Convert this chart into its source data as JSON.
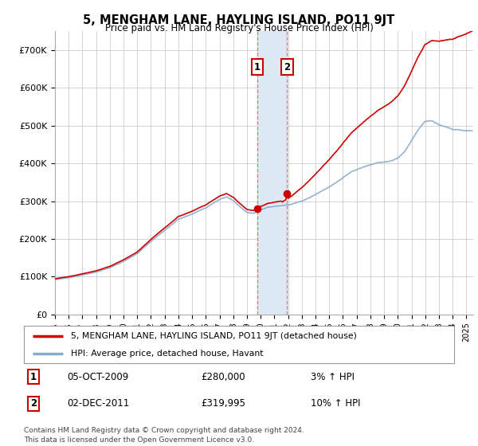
{
  "title": "5, MENGHAM LANE, HAYLING ISLAND, PO11 9JT",
  "subtitle": "Price paid vs. HM Land Registry's House Price Index (HPI)",
  "ylabel_ticks": [
    "£0",
    "£100K",
    "£200K",
    "£300K",
    "£400K",
    "£500K",
    "£600K",
    "£700K"
  ],
  "ytick_values": [
    0,
    100000,
    200000,
    300000,
    400000,
    500000,
    600000,
    700000
  ],
  "ylim": [
    0,
    750000
  ],
  "line1_color": "#cc0000",
  "line2_color": "#88aacc",
  "shading_color": "#dce9f5",
  "marker1_color": "#cc0000",
  "transaction1_date": "05-OCT-2009",
  "transaction1_price": "£280,000",
  "transaction1_hpi": "3% ↑ HPI",
  "transaction2_date": "02-DEC-2011",
  "transaction2_price": "£319,995",
  "transaction2_hpi": "10% ↑ HPI",
  "legend_line1": "5, MENGHAM LANE, HAYLING ISLAND, PO11 9JT (detached house)",
  "legend_line2": "HPI: Average price, detached house, Havant",
  "footer": "Contains HM Land Registry data © Crown copyright and database right 2024.\nThis data is licensed under the Open Government Licence v3.0.",
  "background_color": "#ffffff",
  "grid_color": "#cccccc",
  "transaction1_x": 2009.75,
  "transaction1_y": 280000,
  "transaction2_x": 2011.92,
  "transaction2_y": 319995,
  "shading_x1": 2009.75,
  "shading_x2": 2011.92,
  "xmin": 1995.0,
  "xmax": 2025.5
}
